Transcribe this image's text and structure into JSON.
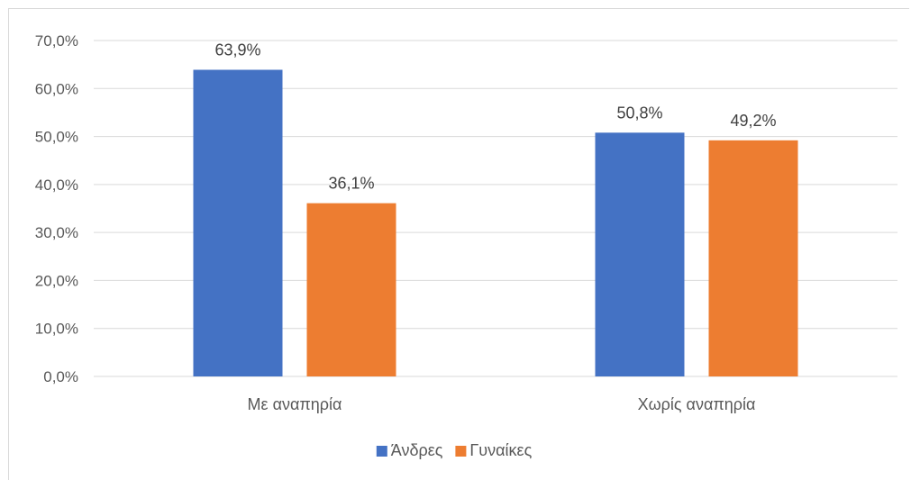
{
  "chart_data": {
    "type": "bar",
    "categories": [
      "Με αναπηρία",
      "Χωρίς αναπηρία"
    ],
    "series": [
      {
        "name": "Άνδρες",
        "values": [
          63.9,
          50.8
        ],
        "labels": [
          "63,9%",
          "50,8%"
        ],
        "color": "#4472c4"
      },
      {
        "name": "Γυναίκες",
        "values": [
          36.1,
          49.2
        ],
        "labels": [
          "36,1%",
          "49,2%"
        ],
        "color": "#ed7d31"
      }
    ],
    "ylim": [
      0,
      70
    ],
    "yticks": [
      0,
      10,
      20,
      30,
      40,
      50,
      60,
      70
    ],
    "ytick_labels": [
      "0,0%",
      "10,0%",
      "20,0%",
      "30,0%",
      "40,0%",
      "50,0%",
      "60,0%",
      "70,0%"
    ],
    "grid": true,
    "gridline_color": "#d9d9d9",
    "legend_position": "bottom"
  }
}
